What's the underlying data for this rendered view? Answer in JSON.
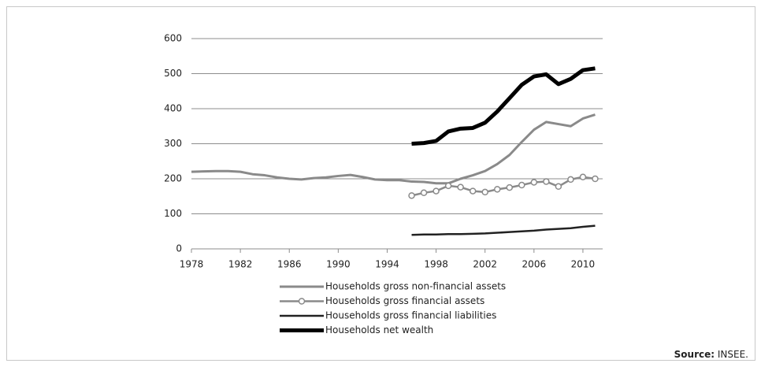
{
  "chart_data": {
    "type": "line",
    "x": [
      1978,
      1979,
      1980,
      1981,
      1982,
      1983,
      1984,
      1985,
      1986,
      1987,
      1988,
      1989,
      1990,
      1991,
      1992,
      1993,
      1994,
      1995,
      1996,
      1997,
      1998,
      1999,
      2000,
      2001,
      2002,
      2003,
      2004,
      2005,
      2006,
      2007,
      2008,
      2009,
      2010,
      2011
    ],
    "series": [
      {
        "name": "Households gross non-financial assets",
        "color": "#8a8a8a",
        "width": 3,
        "marker": false,
        "values": [
          220,
          221,
          222,
          222,
          220,
          213,
          210,
          204,
          200,
          198,
          202,
          204,
          208,
          211,
          205,
          198,
          196,
          196,
          192,
          191,
          187,
          187,
          200,
          210,
          222,
          242,
          268,
          305,
          340,
          362,
          356,
          350,
          372,
          383
        ]
      },
      {
        "name": "Households gross financial assets",
        "color": "#8a8a8a",
        "width": 2.5,
        "marker": true,
        "values": [
          null,
          null,
          null,
          null,
          null,
          null,
          null,
          null,
          null,
          null,
          null,
          null,
          null,
          null,
          null,
          null,
          null,
          null,
          152,
          160,
          165,
          180,
          176,
          165,
          162,
          170,
          175,
          182,
          190,
          192,
          178,
          198,
          205,
          200
        ]
      },
      {
        "name": "Households gross financial liabilities",
        "color": "#222222",
        "width": 2.5,
        "marker": false,
        "values": [
          null,
          null,
          null,
          null,
          null,
          null,
          null,
          null,
          null,
          null,
          null,
          null,
          null,
          null,
          null,
          null,
          null,
          null,
          40,
          41,
          41,
          42,
          42,
          43,
          44,
          46,
          48,
          50,
          52,
          55,
          57,
          59,
          63,
          66
        ]
      },
      {
        "name": "Households net wealth",
        "color": "#000000",
        "width": 5,
        "marker": false,
        "values": [
          null,
          null,
          null,
          null,
          null,
          null,
          null,
          null,
          null,
          null,
          null,
          null,
          null,
          null,
          null,
          null,
          null,
          null,
          300,
          302,
          308,
          335,
          343,
          345,
          360,
          392,
          430,
          468,
          492,
          498,
          470,
          485,
          510,
          515
        ]
      }
    ],
    "xlim": [
      1978,
      2012
    ],
    "xticks": [
      1978,
      1982,
      1986,
      1990,
      1994,
      1998,
      2002,
      2006,
      2010
    ],
    "ylim": [
      0,
      600
    ],
    "yticks": [
      0,
      100,
      200,
      300,
      400,
      500,
      600
    ],
    "grid": true,
    "source_label": "Source:",
    "source": "INSEE."
  }
}
